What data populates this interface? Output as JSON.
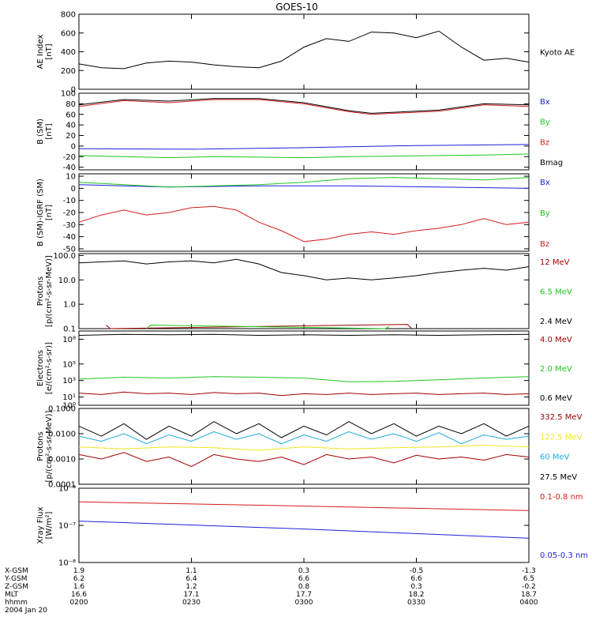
{
  "title": "GOES-10",
  "colors": {
    "black": "#000000",
    "red": "#d41c1c",
    "green": "#1ec81e",
    "blue": "#1e1edc",
    "cyan": "#1eaadc",
    "yellow": "#f0e61e",
    "darkred": "#a00000"
  },
  "chart_data": [
    {
      "type": "line",
      "ylabel": [
        "AE Index",
        "[nT]"
      ],
      "yscale": "linear",
      "ylim": [
        0,
        800
      ],
      "yticks": [
        0,
        200,
        400,
        600,
        800
      ],
      "ytick_labels": [
        "0",
        "200",
        "400",
        "600",
        "800"
      ],
      "series": [
        {
          "name": "Kyoto AE",
          "color": "black",
          "x": [
            0,
            0.05,
            0.1,
            0.15,
            0.2,
            0.25,
            0.3,
            0.35,
            0.4,
            0.45,
            0.5,
            0.55,
            0.6,
            0.65,
            0.7,
            0.75,
            0.8,
            0.85,
            0.9,
            0.95,
            1.0
          ],
          "values": [
            270,
            230,
            220,
            280,
            300,
            290,
            260,
            240,
            230,
            300,
            450,
            540,
            510,
            610,
            600,
            550,
            620,
            450,
            310,
            330,
            290
          ]
        }
      ]
    },
    {
      "type": "line",
      "ylabel": [
        "B (SM)",
        "[nT]"
      ],
      "yscale": "linear",
      "ylim": [
        -45,
        100
      ],
      "yticks": [
        -40,
        -20,
        0,
        20,
        40,
        60,
        80,
        100
      ],
      "ytick_labels": [
        "-40",
        "-20",
        "0",
        "20",
        "40",
        "60",
        "80",
        "100"
      ],
      "series": [
        {
          "name": "Bx",
          "color": "blue",
          "x": [
            0,
            0.25,
            0.5,
            0.75,
            1.0
          ],
          "values": [
            -5,
            -6,
            -3,
            1,
            3
          ]
        },
        {
          "name": "By",
          "color": "green",
          "x": [
            0,
            0.1,
            0.2,
            0.3,
            0.4,
            0.5,
            0.6,
            0.7,
            0.8,
            0.9,
            1.0
          ],
          "values": [
            -18,
            -20,
            -22,
            -20,
            -21,
            -22,
            -20,
            -19,
            -18,
            -17,
            -15
          ]
        },
        {
          "name": "Bz",
          "color": "red",
          "x": [
            0,
            0.1,
            0.2,
            0.3,
            0.4,
            0.5,
            0.6,
            0.65,
            0.7,
            0.8,
            0.9,
            1.0
          ],
          "values": [
            75,
            86,
            82,
            88,
            88,
            80,
            65,
            60,
            62,
            66,
            78,
            75
          ]
        },
        {
          "name": "Bmag",
          "color": "black",
          "x": [
            0,
            0.1,
            0.2,
            0.3,
            0.4,
            0.5,
            0.6,
            0.65,
            0.7,
            0.8,
            0.9,
            1.0
          ],
          "values": [
            78,
            88,
            85,
            90,
            90,
            82,
            67,
            62,
            64,
            68,
            80,
            78
          ]
        }
      ]
    },
    {
      "type": "line",
      "ylabel": [
        "B (SM)-IGRF (SM)",
        "[nT]"
      ],
      "yscale": "linear",
      "ylim": [
        -52,
        12
      ],
      "yticks": [
        -50,
        -40,
        -30,
        -20,
        -10,
        0,
        10
      ],
      "ytick_labels": [
        "-50",
        "-40",
        "-30",
        "-20",
        "-10",
        "0",
        "10"
      ],
      "series": [
        {
          "name": "Bx",
          "color": "blue",
          "x": [
            0,
            0.2,
            0.4,
            0.6,
            0.8,
            1.0
          ],
          "values": [
            3,
            1,
            2,
            2,
            1,
            0
          ]
        },
        {
          "name": "By",
          "color": "green",
          "x": [
            0,
            0.1,
            0.2,
            0.3,
            0.4,
            0.5,
            0.6,
            0.7,
            0.8,
            0.9,
            1.0
          ],
          "values": [
            5,
            3,
            1,
            2,
            3,
            5,
            8,
            9,
            8,
            7,
            9
          ]
        },
        {
          "name": "Bz",
          "color": "red",
          "x": [
            0,
            0.05,
            0.1,
            0.15,
            0.2,
            0.25,
            0.3,
            0.35,
            0.4,
            0.45,
            0.5,
            0.55,
            0.6,
            0.65,
            0.7,
            0.75,
            0.8,
            0.85,
            0.9,
            0.95,
            1.0
          ],
          "values": [
            -28,
            -22,
            -18,
            -22,
            -20,
            -16,
            -15,
            -18,
            -28,
            -35,
            -44,
            -42,
            -38,
            -36,
            -38,
            -35,
            -33,
            -30,
            -25,
            -30,
            -28
          ]
        }
      ]
    },
    {
      "type": "line",
      "ylabel": [
        "Protons",
        "[p/(cm²-s-sr-MeV)]"
      ],
      "yscale": "log",
      "ylim": [
        0.1,
        120
      ],
      "yticks": [
        0.1,
        1,
        10,
        100
      ],
      "ytick_labels": [
        "0.1",
        "1.0",
        "10.0",
        "100.0"
      ],
      "series": [
        {
          "name": "12 MeV",
          "color": "darkred",
          "x": [
            0.06,
            0.07,
            0.73,
            0.74
          ],
          "values": [
            0.14,
            0.1,
            0.15,
            0.1
          ]
        },
        {
          "name": "6.5 MeV",
          "color": "green",
          "x": [
            0.15,
            0.16,
            0.68,
            0.69
          ],
          "values": [
            0.1,
            0.14,
            0.1,
            0.12
          ]
        },
        {
          "name": "2.4 MeV",
          "color": "black",
          "x": [
            0,
            0.05,
            0.1,
            0.15,
            0.2,
            0.25,
            0.3,
            0.35,
            0.4,
            0.45,
            0.5,
            0.55,
            0.6,
            0.65,
            0.7,
            0.75,
            0.8,
            0.85,
            0.9,
            0.95,
            1.0
          ],
          "values": [
            50,
            55,
            60,
            45,
            55,
            60,
            50,
            70,
            45,
            20,
            15,
            10,
            12,
            10,
            12,
            15,
            20,
            25,
            30,
            25,
            35
          ]
        }
      ]
    },
    {
      "type": "line",
      "ylabel": [
        "Electrons",
        "[e/(cm²-s-sr)]"
      ],
      "yscale": "log",
      "ylim": [
        1,
        1000000000
      ],
      "yticks": [
        1,
        10,
        1000,
        100000,
        100000000
      ],
      "ytick_labels": [
        "10⁰",
        "10¹",
        "10³",
        "10⁵",
        "10⁸"
      ],
      "series": [
        {
          "name": "4.0 MeV",
          "color": "darkred",
          "x": [
            0,
            0.05,
            0.1,
            0.15,
            0.2,
            0.25,
            0.3,
            0.35,
            0.4,
            0.45,
            0.5,
            0.55,
            0.6,
            0.65,
            0.7,
            0.75,
            0.8,
            0.85,
            0.9,
            0.95,
            1.0
          ],
          "values": [
            30,
            20,
            40,
            25,
            30,
            20,
            35,
            25,
            30,
            15,
            25,
            20,
            30,
            20,
            25,
            30,
            20,
            25,
            30,
            20,
            25
          ]
        },
        {
          "name": "2.0 MeV",
          "color": "green",
          "x": [
            0,
            0.1,
            0.2,
            0.3,
            0.4,
            0.5,
            0.6,
            0.7,
            0.8,
            0.9,
            1.0
          ],
          "values": [
            1500,
            2500,
            2000,
            3000,
            2500,
            2000,
            700,
            800,
            1200,
            2000,
            3000
          ]
        },
        {
          "name": "0.6 MeV",
          "color": "black",
          "x": [
            0,
            0.1,
            0.2,
            0.3,
            0.4,
            0.5,
            0.6,
            0.7,
            0.8,
            0.9,
            1.0
          ],
          "values": [
            300000000,
            400000000,
            350000000,
            400000000,
            300000000,
            350000000,
            300000000,
            350000000,
            300000000,
            350000000,
            400000000
          ]
        }
      ]
    },
    {
      "type": "line",
      "ylabel": [
        "Protons",
        "[p/(cm²-s-sr-MeV)]"
      ],
      "yscale": "log",
      "ylim": [
        0.0001,
        0.1
      ],
      "yticks": [
        0.0001,
        0.001,
        0.01,
        0.1
      ],
      "ytick_labels": [
        "0.0001",
        "0.0010",
        "0.0100",
        "0.1000"
      ],
      "series": [
        {
          "name": "332.5 MeV",
          "color": "darkred",
          "x": [
            0,
            0.05,
            0.1,
            0.15,
            0.2,
            0.25,
            0.3,
            0.35,
            0.4,
            0.45,
            0.5,
            0.55,
            0.6,
            0.65,
            0.7,
            0.75,
            0.8,
            0.85,
            0.9,
            0.95,
            1.0
          ],
          "values": [
            0.0015,
            0.001,
            0.0018,
            0.0008,
            0.0012,
            0.0005,
            0.0015,
            0.001,
            0.0008,
            0.0012,
            0.0006,
            0.0015,
            0.001,
            0.0012,
            0.0007,
            0.0014,
            0.001,
            0.0012,
            0.0009,
            0.0015,
            0.0012
          ]
        },
        {
          "name": "122.5 MeV",
          "color": "yellow",
          "x": [
            0,
            0.1,
            0.2,
            0.3,
            0.4,
            0.5,
            0.6,
            0.7,
            0.8,
            0.9,
            1.0
          ],
          "values": [
            0.003,
            0.0025,
            0.003,
            0.0028,
            0.0022,
            0.003,
            0.0025,
            0.0028,
            0.003,
            0.0035,
            0.003
          ]
        },
        {
          "name": "60 MeV",
          "color": "cyan",
          "x": [
            0,
            0.05,
            0.1,
            0.15,
            0.2,
            0.25,
            0.3,
            0.35,
            0.4,
            0.45,
            0.5,
            0.55,
            0.6,
            0.65,
            0.7,
            0.75,
            0.8,
            0.85,
            0.9,
            0.95,
            1.0
          ],
          "values": [
            0.008,
            0.005,
            0.01,
            0.004,
            0.009,
            0.005,
            0.012,
            0.006,
            0.01,
            0.004,
            0.009,
            0.005,
            0.012,
            0.006,
            0.01,
            0.005,
            0.011,
            0.004,
            0.009,
            0.006,
            0.008
          ]
        },
        {
          "name": "27.5 MeV",
          "color": "black",
          "x": [
            0,
            0.05,
            0.1,
            0.15,
            0.2,
            0.25,
            0.3,
            0.35,
            0.4,
            0.45,
            0.5,
            0.55,
            0.6,
            0.65,
            0.7,
            0.75,
            0.8,
            0.85,
            0.9,
            0.95,
            1.0
          ],
          "values": [
            0.02,
            0.008,
            0.025,
            0.006,
            0.02,
            0.008,
            0.03,
            0.01,
            0.025,
            0.007,
            0.02,
            0.009,
            0.03,
            0.01,
            0.025,
            0.008,
            0.02,
            0.01,
            0.025,
            0.008,
            0.02
          ]
        }
      ]
    },
    {
      "type": "line",
      "ylabel": [
        "Xray Flux",
        "[W/m²]"
      ],
      "yscale": "log",
      "ylim": [
        1e-08,
        1e-06
      ],
      "yticks": [
        1e-08,
        1e-07,
        1e-06
      ],
      "ytick_labels": [
        "10⁻⁸",
        "10⁻⁷",
        "10⁻⁶"
      ],
      "series": [
        {
          "name": "0.1-0.8 nm",
          "color": "red",
          "x": [
            0,
            0.5,
            1.0
          ],
          "values": [
            4.3e-07,
            3.3e-07,
            2.5e-07
          ]
        },
        {
          "name": "0.05-0.3 nm",
          "color": "blue",
          "x": [
            0,
            0.5,
            1.0
          ],
          "values": [
            1.3e-07,
            8e-08,
            4.5e-08
          ]
        }
      ]
    }
  ],
  "x_axis": {
    "rows": [
      {
        "label": "X-GSM",
        "values": [
          "1.9",
          "1.1",
          "0.3",
          "-0.5",
          "-1.3"
        ]
      },
      {
        "label": "Y-GSM",
        "values": [
          "6.2",
          "6.4",
          "6.6",
          "6.6",
          "6.5"
        ]
      },
      {
        "label": "Z-GSM",
        "values": [
          "1.6",
          "1.2",
          "0.8",
          "0.3",
          "-0.2"
        ]
      },
      {
        "label": "MLT",
        "values": [
          "16.6",
          "17.1",
          "17.7",
          "18.2",
          "18.7"
        ]
      },
      {
        "label": "hhmm",
        "values": [
          "0200",
          "0230",
          "0300",
          "0330",
          "0400"
        ]
      }
    ],
    "date": "2004 Jan 20"
  }
}
